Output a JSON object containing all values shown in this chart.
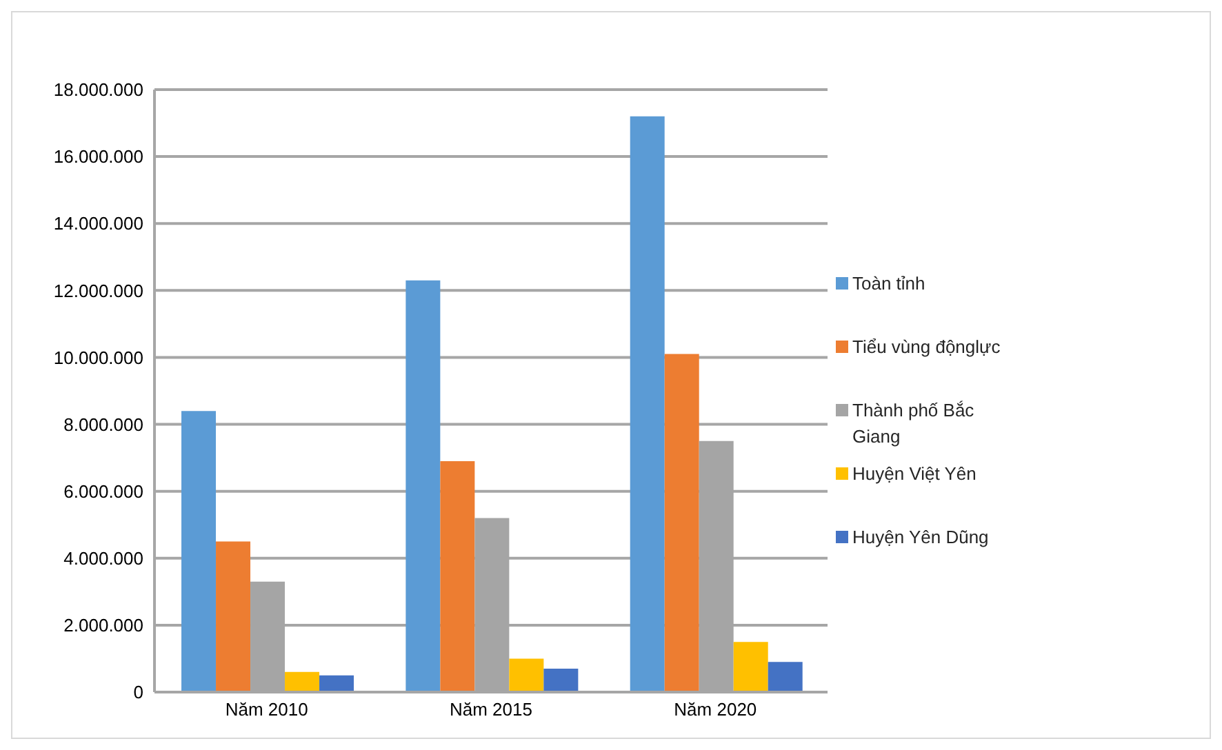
{
  "chart_data": {
    "type": "bar",
    "categories": [
      "Năm 2010",
      "Năm 2015",
      "Năm 2020"
    ],
    "series": [
      {
        "name": "Toàn tỉnh",
        "color": "#5b9bd5",
        "values": [
          8400000,
          12300000,
          17200000
        ]
      },
      {
        "name": "Tiểu vùng độnglực",
        "color": "#ed7d31",
        "values": [
          4500000,
          6900000,
          10100000
        ]
      },
      {
        "name": "Thành phố Bắc Giang",
        "color": "#a5a5a5",
        "values": [
          3300000,
          5200000,
          7500000
        ]
      },
      {
        "name": "Huyện Việt Yên",
        "color": "#ffc000",
        "values": [
          600000,
          1000000,
          1500000
        ]
      },
      {
        "name": "Huyện Yên Dũng",
        "color": "#4472c4",
        "values": [
          500000,
          700000,
          900000
        ]
      }
    ],
    "ylim": [
      0,
      18000000
    ],
    "yticks": [
      0,
      {
        "value": 2000000,
        "label": "2.000.000"
      },
      {
        "value": 4000000,
        "label": "4.000.000"
      },
      {
        "value": 6000000,
        "label": "6.000.000"
      },
      {
        "value": 8000000,
        "label": "8.000.000"
      },
      {
        "value": 10000000,
        "label": "10.000.000"
      },
      {
        "value": 12000000,
        "label": "12.000.000"
      },
      {
        "value": 14000000,
        "label": "14.000.000"
      },
      {
        "value": 16000000,
        "label": "16.000.000"
      },
      {
        "value": 18000000,
        "label": "18.000.000"
      }
    ],
    "grid": "y",
    "legend": "right"
  }
}
